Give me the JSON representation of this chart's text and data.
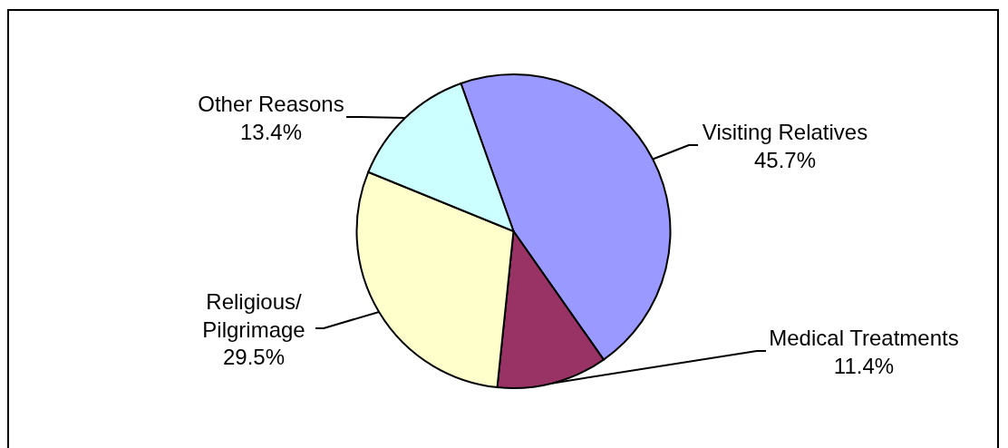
{
  "chart_data": {
    "type": "pie",
    "categories": [
      "Visiting Relatives",
      "Medical Treatments",
      "Religious/\nPilgrimage",
      "Other Reasons"
    ],
    "values": [
      45.7,
      11.4,
      29.5,
      13.4
    ],
    "value_labels": [
      "45.7%",
      "11.4%",
      "29.5%",
      "13.4%"
    ],
    "colors": [
      "#9999ff",
      "#993366",
      "#ffffcc",
      "#ccffff"
    ]
  }
}
